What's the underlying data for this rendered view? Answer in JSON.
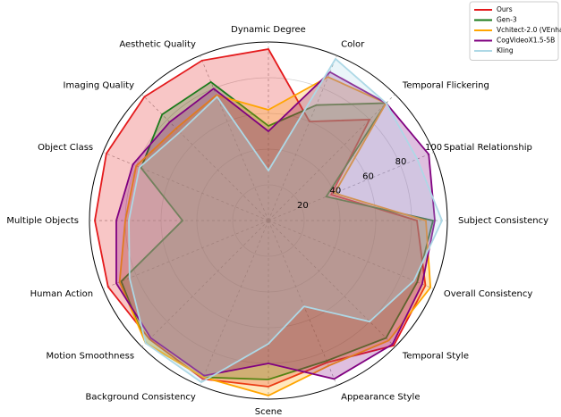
{
  "chart_data": {
    "type": "radar",
    "categories": [
      "Dynamic Degree",
      "Color",
      "Temporal Flickering",
      "Spatial Relationship",
      "Subject Consistency",
      "Overall Consistency",
      "Temporal Style",
      "Appearance Style",
      "Scene",
      "Background Consistency",
      "Motion Smoothness",
      "Human Action",
      "Multiple Objects",
      "Object Class",
      "Imaging Quality",
      "Aesthetic Quality"
    ],
    "series": [
      {
        "name": "Ours",
        "color": "#e41a1c",
        "values": [
          96,
          60,
          80,
          38,
          83,
          95,
          99,
          86,
          93,
          96,
          94,
          97,
          97,
          98,
          98,
          97
        ]
      },
      {
        "name": "Gen-3",
        "color": "#1a7a1a",
        "values": [
          53,
          70,
          93,
          35,
          92,
          90,
          93,
          85,
          89,
          95,
          97,
          89,
          48,
          77,
          84,
          84
        ]
      },
      {
        "name": "Vchitect-2.0 (VEnhancer)",
        "color": "#ffa500",
        "values": [
          62,
          87,
          93,
          40,
          88,
          98,
          95,
          88,
          98,
          95,
          97,
          90,
          80,
          80,
          73,
          76
        ]
      },
      {
        "name": "CogVideoX1.5-5B",
        "color": "#800080",
        "values": [
          50,
          90,
          93,
          97,
          93,
          93,
          98,
          96,
          80,
          94,
          93,
          92,
          85,
          82,
          78,
          80
        ]
      },
      {
        "name": "Kling",
        "color": "#add8e6",
        "values": [
          28,
          98,
          93,
          90,
          97,
          88,
          80,
          52,
          69,
          98,
          97,
          84,
          78,
          78,
          70,
          75
        ]
      }
    ],
    "ylim": [
      0,
      100
    ],
    "yticks": [
      20,
      40,
      60,
      80,
      100
    ],
    "grid": true,
    "legend": "upper right"
  }
}
